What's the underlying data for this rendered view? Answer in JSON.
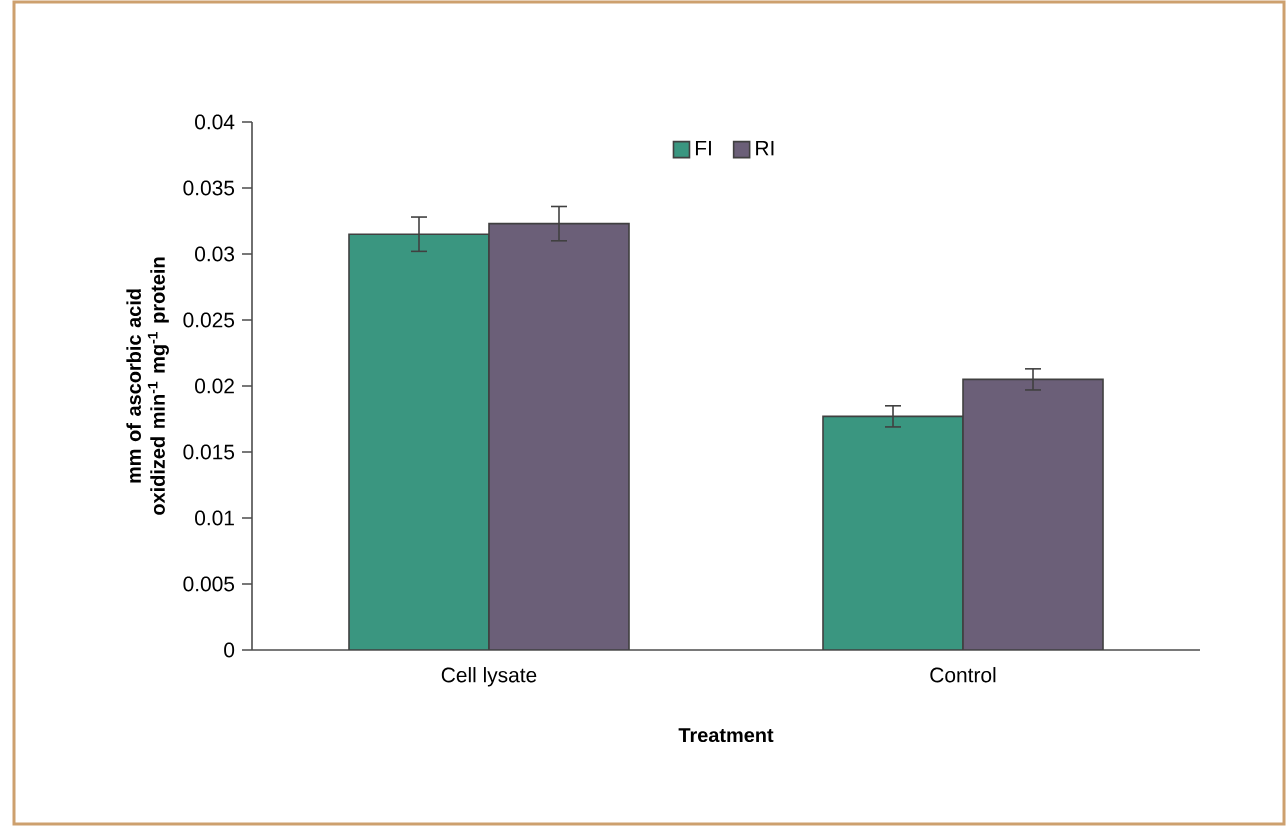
{
  "chart_data": {
    "type": "bar",
    "xlabel": "Treatment",
    "ylabel": "mm of ascorbic acid oxidized min$^{-1}$ mg$^{-1}$ protein",
    "categories": [
      "Cell lysate",
      "Control"
    ],
    "series": [
      {
        "name": "FI",
        "color": "#3a9680",
        "values": [
          0.0315,
          0.0177
        ],
        "errors": [
          0.0013,
          0.0008
        ]
      },
      {
        "name": "RI",
        "color": "#6b5f78",
        "values": [
          0.0323,
          0.0205
        ],
        "errors": [
          0.0013,
          0.0008
        ]
      }
    ],
    "ylim": [
      0,
      0.04
    ],
    "yticks": [
      0,
      0.005,
      0.01,
      0.015,
      0.02,
      0.025,
      0.03,
      0.035,
      0.04
    ],
    "legend": "top",
    "grid": false
  }
}
